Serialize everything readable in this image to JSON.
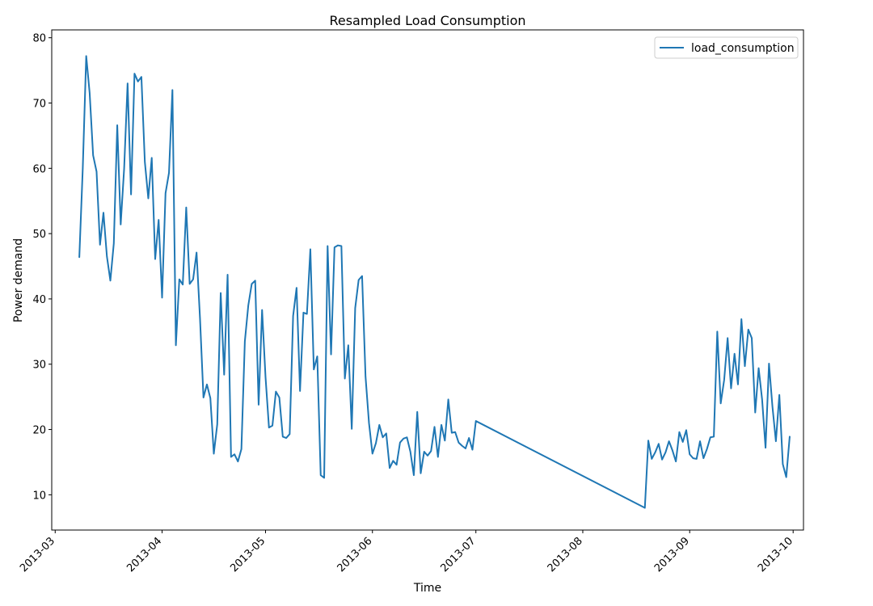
{
  "chart_data": {
    "type": "line",
    "title": "Resampled Load Consumption",
    "xlabel": "Time",
    "ylabel": "Power demand",
    "xlim": [
      "2013-02-28",
      "2013-10-04"
    ],
    "ylim": [
      4.6,
      81.2
    ],
    "grid": false,
    "legend_position": "top-right",
    "x_ticks": [
      "2013-03-01",
      "2013-04-01",
      "2013-05-01",
      "2013-06-01",
      "2013-07-01",
      "2013-08-01",
      "2013-09-01",
      "2013-10-01"
    ],
    "x_tick_labels": [
      "2013-03",
      "2013-04",
      "2013-05",
      "2013-06",
      "2013-07",
      "2013-08",
      "2013-09",
      "2013-10"
    ],
    "y_ticks": [
      10,
      20,
      30,
      40,
      50,
      60,
      70,
      80
    ],
    "y_tick_labels": [
      "10",
      "20",
      "30",
      "40",
      "50",
      "60",
      "70",
      "80"
    ],
    "series": [
      {
        "name": "load_consumption",
        "color": "#1f77b4",
        "points": [
          [
            "2013-03-08",
            46.4
          ],
          [
            "2013-03-09",
            60.0
          ],
          [
            "2013-03-10",
            77.2
          ],
          [
            "2013-03-11",
            71.5
          ],
          [
            "2013-03-12",
            62.0
          ],
          [
            "2013-03-13",
            59.5
          ],
          [
            "2013-03-14",
            48.3
          ],
          [
            "2013-03-15",
            53.2
          ],
          [
            "2013-03-16",
            46.5
          ],
          [
            "2013-03-17",
            42.8
          ],
          [
            "2013-03-18",
            48.5
          ],
          [
            "2013-03-19",
            66.6
          ],
          [
            "2013-03-20",
            51.4
          ],
          [
            "2013-03-21",
            60.0
          ],
          [
            "2013-03-22",
            73.0
          ],
          [
            "2013-03-23",
            56.0
          ],
          [
            "2013-03-24",
            74.5
          ],
          [
            "2013-03-25",
            73.3
          ],
          [
            "2013-03-26",
            74.0
          ],
          [
            "2013-03-27",
            61.0
          ],
          [
            "2013-03-28",
            55.4
          ],
          [
            "2013-03-29",
            61.6
          ],
          [
            "2013-03-30",
            46.1
          ],
          [
            "2013-03-31",
            52.1
          ],
          [
            "2013-04-01",
            40.2
          ],
          [
            "2013-04-02",
            56.2
          ],
          [
            "2013-04-03",
            59.3
          ],
          [
            "2013-04-04",
            72.0
          ],
          [
            "2013-04-05",
            32.9
          ],
          [
            "2013-04-06",
            43.0
          ],
          [
            "2013-04-07",
            42.2
          ],
          [
            "2013-04-08",
            54.0
          ],
          [
            "2013-04-09",
            42.3
          ],
          [
            "2013-04-10",
            43.0
          ],
          [
            "2013-04-11",
            47.1
          ],
          [
            "2013-04-12",
            37.0
          ],
          [
            "2013-04-13",
            24.9
          ],
          [
            "2013-04-14",
            26.9
          ],
          [
            "2013-04-15",
            24.8
          ],
          [
            "2013-04-16",
            16.3
          ],
          [
            "2013-04-17",
            20.8
          ],
          [
            "2013-04-18",
            40.9
          ],
          [
            "2013-04-19",
            28.4
          ],
          [
            "2013-04-20",
            43.7
          ],
          [
            "2013-04-21",
            15.8
          ],
          [
            "2013-04-22",
            16.2
          ],
          [
            "2013-04-23",
            15.1
          ],
          [
            "2013-04-24",
            17.0
          ],
          [
            "2013-04-25",
            33.5
          ],
          [
            "2013-04-26",
            39.0
          ],
          [
            "2013-04-27",
            42.3
          ],
          [
            "2013-04-28",
            42.8
          ],
          [
            "2013-04-29",
            23.8
          ],
          [
            "2013-04-30",
            38.3
          ],
          [
            "2013-05-01",
            28.0
          ],
          [
            "2013-05-02",
            20.3
          ],
          [
            "2013-05-03",
            20.6
          ],
          [
            "2013-05-04",
            25.8
          ],
          [
            "2013-05-05",
            24.9
          ],
          [
            "2013-05-06",
            18.9
          ],
          [
            "2013-05-07",
            18.7
          ],
          [
            "2013-05-08",
            19.3
          ],
          [
            "2013-05-09",
            37.4
          ],
          [
            "2013-05-10",
            41.7
          ],
          [
            "2013-05-11",
            25.9
          ],
          [
            "2013-05-12",
            37.9
          ],
          [
            "2013-05-13",
            37.7
          ],
          [
            "2013-05-14",
            47.6
          ],
          [
            "2013-05-15",
            29.2
          ],
          [
            "2013-05-16",
            31.2
          ],
          [
            "2013-05-17",
            13.0
          ],
          [
            "2013-05-18",
            12.6
          ],
          [
            "2013-05-19",
            48.1
          ],
          [
            "2013-05-20",
            31.5
          ],
          [
            "2013-05-21",
            47.9
          ],
          [
            "2013-05-22",
            48.2
          ],
          [
            "2013-05-23",
            48.1
          ],
          [
            "2013-05-24",
            27.8
          ],
          [
            "2013-05-25",
            32.9
          ],
          [
            "2013-05-26",
            20.1
          ],
          [
            "2013-05-27",
            38.6
          ],
          [
            "2013-05-28",
            42.9
          ],
          [
            "2013-05-29",
            43.5
          ],
          [
            "2013-05-30",
            28.1
          ],
          [
            "2013-05-31",
            21.0
          ],
          [
            "2013-06-01",
            16.3
          ],
          [
            "2013-06-02",
            17.9
          ],
          [
            "2013-06-03",
            20.7
          ],
          [
            "2013-06-04",
            18.8
          ],
          [
            "2013-06-05",
            19.4
          ],
          [
            "2013-06-06",
            14.1
          ],
          [
            "2013-06-07",
            15.2
          ],
          [
            "2013-06-08",
            14.6
          ],
          [
            "2013-06-09",
            18.0
          ],
          [
            "2013-06-10",
            18.6
          ],
          [
            "2013-06-11",
            18.8
          ],
          [
            "2013-06-12",
            16.6
          ],
          [
            "2013-06-13",
            13.0
          ],
          [
            "2013-06-14",
            22.7
          ],
          [
            "2013-06-15",
            13.3
          ],
          [
            "2013-06-16",
            16.6
          ],
          [
            "2013-06-17",
            16.0
          ],
          [
            "2013-06-18",
            16.7
          ],
          [
            "2013-06-19",
            20.4
          ],
          [
            "2013-06-20",
            15.8
          ],
          [
            "2013-06-21",
            20.7
          ],
          [
            "2013-06-22",
            18.3
          ],
          [
            "2013-06-23",
            24.6
          ],
          [
            "2013-06-24",
            19.5
          ],
          [
            "2013-06-25",
            19.6
          ],
          [
            "2013-06-26",
            18.0
          ],
          [
            "2013-06-27",
            17.5
          ],
          [
            "2013-06-28",
            17.1
          ],
          [
            "2013-06-29",
            18.7
          ],
          [
            "2013-06-30",
            16.9
          ],
          [
            "2013-07-01",
            21.3
          ],
          [
            "2013-08-19",
            8.0
          ],
          [
            "2013-08-20",
            18.3
          ],
          [
            "2013-08-21",
            15.5
          ],
          [
            "2013-08-22",
            16.5
          ],
          [
            "2013-08-23",
            17.8
          ],
          [
            "2013-08-24",
            15.4
          ],
          [
            "2013-08-25",
            16.5
          ],
          [
            "2013-08-26",
            18.2
          ],
          [
            "2013-08-27",
            16.8
          ],
          [
            "2013-08-28",
            15.1
          ],
          [
            "2013-08-29",
            19.6
          ],
          [
            "2013-08-30",
            18.1
          ],
          [
            "2013-08-31",
            19.9
          ],
          [
            "2013-09-01",
            16.2
          ],
          [
            "2013-09-02",
            15.6
          ],
          [
            "2013-09-03",
            15.5
          ],
          [
            "2013-09-04",
            18.2
          ],
          [
            "2013-09-05",
            15.6
          ],
          [
            "2013-09-06",
            17.0
          ],
          [
            "2013-09-07",
            18.8
          ],
          [
            "2013-09-08",
            18.9
          ],
          [
            "2013-09-09",
            35.0
          ],
          [
            "2013-09-10",
            24.0
          ],
          [
            "2013-09-11",
            27.6
          ],
          [
            "2013-09-12",
            34.0
          ],
          [
            "2013-09-13",
            26.3
          ],
          [
            "2013-09-14",
            31.6
          ],
          [
            "2013-09-15",
            26.9
          ],
          [
            "2013-09-16",
            36.9
          ],
          [
            "2013-09-17",
            29.7
          ],
          [
            "2013-09-18",
            35.3
          ],
          [
            "2013-09-19",
            34.0
          ],
          [
            "2013-09-20",
            22.6
          ],
          [
            "2013-09-21",
            29.4
          ],
          [
            "2013-09-22",
            24.6
          ],
          [
            "2013-09-23",
            17.2
          ],
          [
            "2013-09-24",
            30.1
          ],
          [
            "2013-09-25",
            23.5
          ],
          [
            "2013-09-26",
            18.2
          ],
          [
            "2013-09-27",
            25.3
          ],
          [
            "2013-09-28",
            14.7
          ],
          [
            "2013-09-29",
            12.7
          ],
          [
            "2013-09-30",
            18.9
          ]
        ]
      }
    ]
  }
}
